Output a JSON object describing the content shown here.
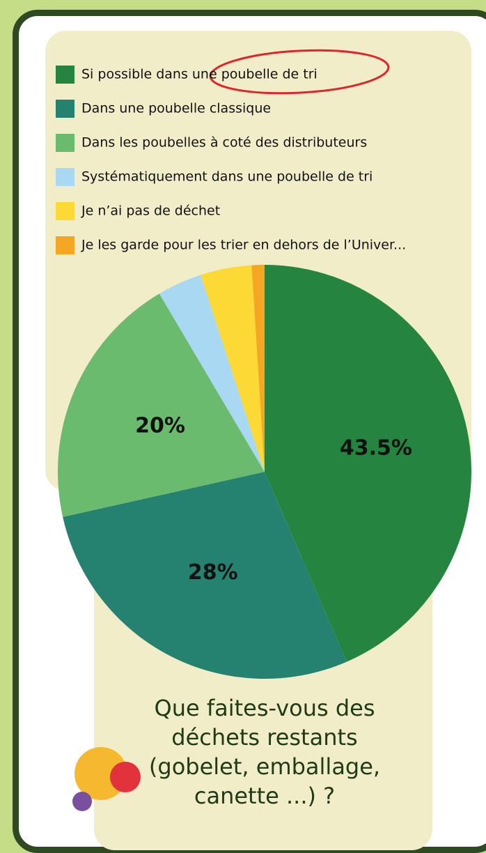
{
  "chart_data": {
    "type": "pie",
    "title": "Que faites-vous des déchets restants (gobelet, emballage, canette ...) ?",
    "categories": [
      "Si possible dans une poubelle de tri",
      "Dans une poubelle classique",
      "Dans les poubelles à coté des distributeurs",
      "Systématiquement dans une poubelle de tri",
      "Je n’ai pas de déchet",
      "Je les garde pour les trier en dehors de l’Univer..."
    ],
    "values": [
      43.5,
      28,
      20,
      3.5,
      4,
      1
    ],
    "value_labels": [
      "43.5%",
      "28%",
      "20%",
      null,
      null,
      null
    ],
    "colors": [
      "#258540",
      "#268270",
      "#6bbb6f",
      "#a9d8f3",
      "#fcd934",
      "#f5a623"
    ]
  }
}
